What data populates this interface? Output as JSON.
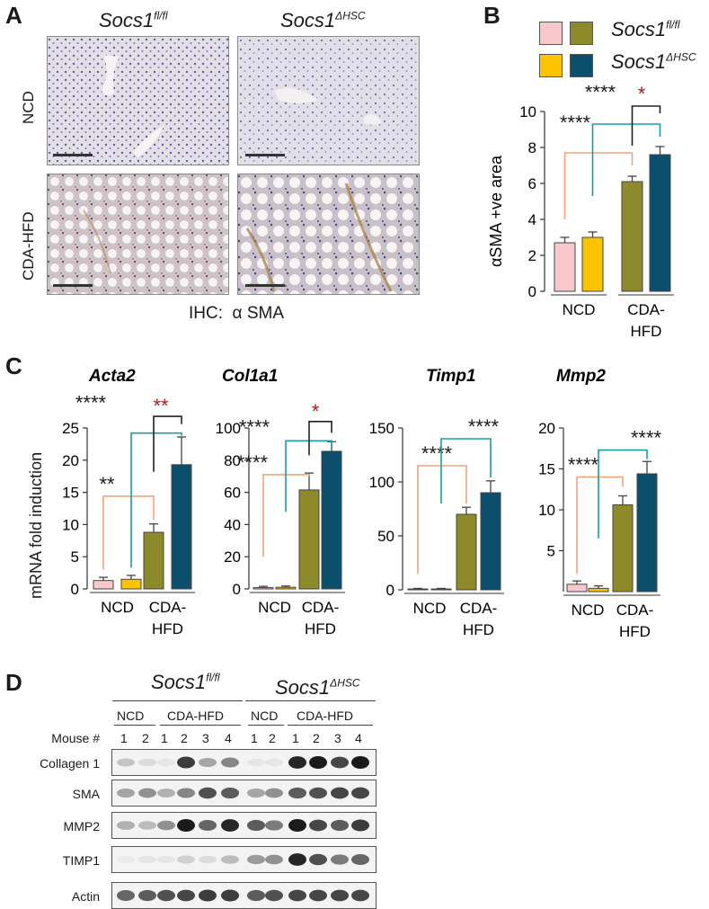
{
  "colors": {
    "fl_ncd": "#f7c9cc",
    "hsc_ncd": "#fbc300",
    "fl_cda": "#8c8a2b",
    "hsc_cda": "#0b4f6c",
    "bracket_ncd": "#f0a57a",
    "bracket_fl": "#1c9da0",
    "bracket_cda": "#222222",
    "star_red": "#a32020"
  },
  "panelA": {
    "letter": "A",
    "col1_base": "Socs1",
    "col1_sup": "fl/fl",
    "col2_base": "Socs1",
    "col2_sup": "ΔHSC",
    "row1": "NCD",
    "row2": "CDA-HFD",
    "caption": "IHC:  α SMA"
  },
  "panelB": {
    "letter": "B",
    "legend_label1_base": "Socs1",
    "legend_label1_sup": "fl/fl",
    "legend_label2_base": "Socs1",
    "legend_label2_sup": "ΔHSC",
    "group1": "NCD",
    "group2a": "CDA-",
    "group2b": "HFD"
  },
  "panelC": {
    "letter": "C",
    "ylabel": "mRNA fold induction"
  },
  "panelD": {
    "letter": "D",
    "geno1_base": "Socs1",
    "geno1_sup": "fl/fl",
    "geno2_base": "Socs1",
    "geno2_sup": "ΔHSC",
    "ncd": "NCD",
    "cda": "CDA-HFD",
    "mouse_label": "Mouse #",
    "lane_numbers": [
      "1",
      "2",
      "1",
      "2",
      "3",
      "4",
      "1",
      "2",
      "1",
      "2",
      "3",
      "4"
    ],
    "rows": [
      {
        "label": "Collagen 1",
        "intensity": [
          0.2,
          0.1,
          0.05,
          0.85,
          0.35,
          0.5,
          0.05,
          0.05,
          0.95,
          1.0,
          0.8,
          1.0
        ]
      },
      {
        "label": "SMA",
        "intensity": [
          0.35,
          0.45,
          0.3,
          0.5,
          0.75,
          0.7,
          0.35,
          0.45,
          0.7,
          0.75,
          0.8,
          0.8
        ]
      },
      {
        "label": "MMP2",
        "intensity": [
          0.3,
          0.25,
          0.45,
          1.0,
          0.65,
          0.95,
          0.7,
          0.55,
          1.0,
          0.8,
          0.7,
          0.85
        ]
      },
      {
        "label": "TIMP1",
        "intensity": [
          0.03,
          0.05,
          0.05,
          0.15,
          0.1,
          0.25,
          0.4,
          0.45,
          0.95,
          0.75,
          0.55,
          0.65
        ]
      },
      {
        "label": "Actin",
        "intensity": [
          0.65,
          0.7,
          0.75,
          0.8,
          0.85,
          0.85,
          0.7,
          0.75,
          0.8,
          0.8,
          0.8,
          0.8
        ]
      }
    ]
  },
  "chart_data": [
    {
      "type": "bar",
      "panel": "B",
      "ylabel": "αSMA  +ve area",
      "ylim": [
        0,
        10
      ],
      "yticks": [
        "0",
        "2",
        "4",
        "6",
        "8",
        "10"
      ],
      "categories": [
        "NCD",
        "NCD",
        "CDA-HFD",
        "CDA-HFD"
      ],
      "values": [
        2.7,
        3.0,
        6.1,
        7.6
      ],
      "errors": [
        0.3,
        0.3,
        0.3,
        0.45
      ],
      "series": [
        {
          "name": "Socs1fl/fl",
          "values": [
            2.7,
            null,
            6.1,
            null
          ]
        },
        {
          "name": "Socs1ΔHSC",
          "values": [
            null,
            3.0,
            null,
            7.6
          ]
        }
      ],
      "annotations": [
        "****",
        "****",
        "*"
      ]
    },
    {
      "type": "bar",
      "title": "Acta2",
      "ylim": [
        0,
        25
      ],
      "yticks": [
        "0",
        "5",
        "10",
        "15",
        "20",
        "25"
      ],
      "categories": [
        "NCD",
        "NCD",
        "CDA-HFD",
        "CDA-HFD"
      ],
      "values": [
        1.3,
        1.5,
        8.8,
        19.3
      ],
      "errors": [
        0.5,
        0.6,
        1.3,
        4.3
      ],
      "annotations": [
        "**",
        "****",
        "**"
      ]
    },
    {
      "type": "bar",
      "title": "Col1a1",
      "ylim": [
        0,
        100
      ],
      "yticks": [
        "0",
        "20",
        "40",
        "60",
        "80",
        "100"
      ],
      "categories": [
        "NCD",
        "NCD",
        "CDA-HFD",
        "CDA-HFD"
      ],
      "values": [
        0.8,
        1.0,
        61.5,
        85.5
      ],
      "errors": [
        0.8,
        0.8,
        10.5,
        6.0
      ],
      "annotations": [
        "****",
        "****",
        "*"
      ]
    },
    {
      "type": "bar",
      "title": "Timp1",
      "ylim": [
        0,
        150
      ],
      "yticks": [
        "0",
        "50",
        "100",
        "150"
      ],
      "categories": [
        "NCD",
        "NCD",
        "CDA-HFD",
        "CDA-HFD"
      ],
      "values": [
        0.8,
        0.8,
        70,
        90
      ],
      "errors": [
        0.5,
        0.5,
        6.5,
        11.0
      ],
      "annotations": [
        "****",
        "****"
      ]
    },
    {
      "type": "bar",
      "title": "Mmp2",
      "ylim": [
        0,
        20
      ],
      "yticks": [
        "5",
        "10",
        "15",
        "20"
      ],
      "categories": [
        "NCD",
        "NCD",
        "CDA-HFD",
        "CDA-HFD"
      ],
      "values": [
        0.9,
        0.4,
        10.6,
        14.4
      ],
      "errors": [
        0.4,
        0.3,
        1.1,
        1.5
      ],
      "annotations": [
        "****",
        "****"
      ]
    }
  ]
}
